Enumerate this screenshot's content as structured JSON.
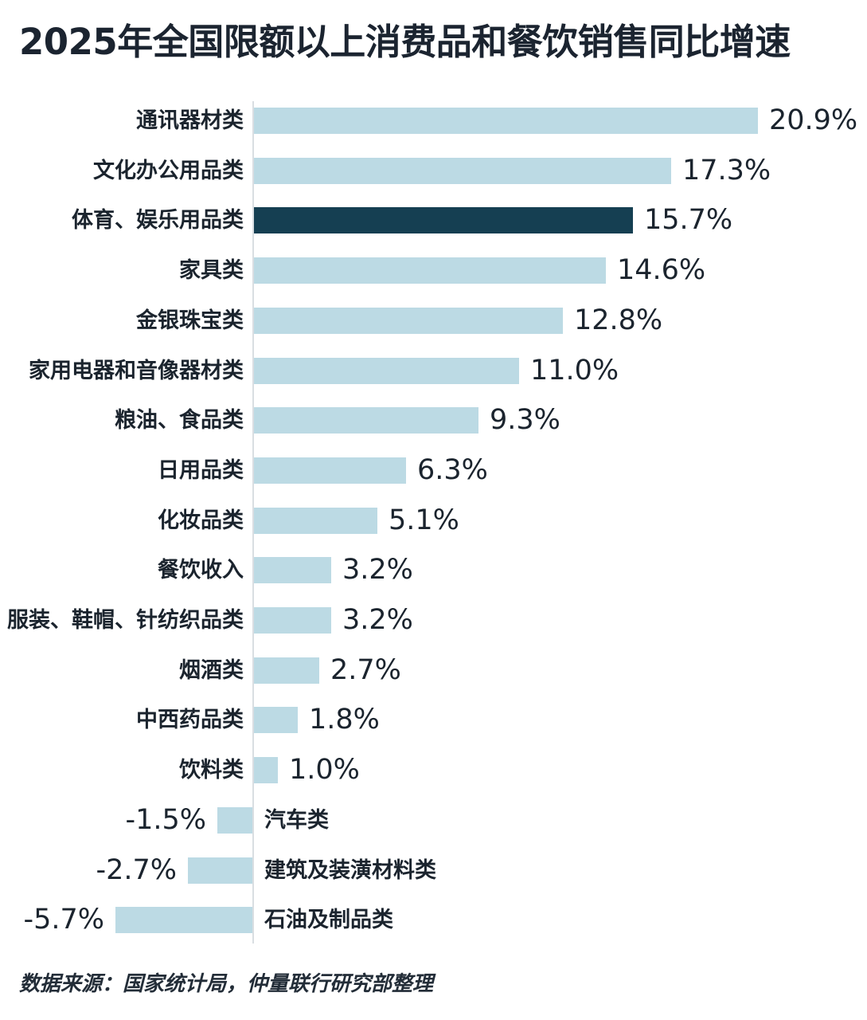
{
  "title": "2025年全国限额以上消费品和餐饮销售同比增速",
  "footer": {
    "source": "数据来源：国家统计局，仲量联行研究部整理"
  },
  "chart_data": {
    "type": "bar",
    "orientation": "horizontal",
    "title": "2025年全国限额以上消费品和餐饮销售同比增速",
    "unit": "%",
    "grid": false,
    "legend": false,
    "xlim": [
      -6.5,
      22
    ],
    "categories": [
      "通讯器材类",
      "文化办公用品类",
      "体育、娱乐用品类",
      "家具类",
      "金银珠宝类",
      "家用电器和音像器材类",
      "粮油、食品类",
      "日用品类",
      "化妆品类",
      "餐饮收入",
      "服装、鞋帽、针纺织品类",
      "烟酒类",
      "中西药品类",
      "饮料类",
      "汽车类",
      "建筑及装潢材料类",
      "石油及制品类"
    ],
    "values": [
      20.9,
      17.3,
      15.7,
      14.6,
      12.8,
      11.0,
      9.3,
      6.3,
      5.1,
      3.2,
      3.2,
      2.7,
      1.8,
      1.0,
      -1.5,
      -2.7,
      -5.7
    ],
    "value_labels": [
      "20.9%",
      "17.3%",
      "15.7%",
      "14.6%",
      "12.8%",
      "11.0%",
      "9.3%",
      "6.3%",
      "5.1%",
      "3.2%",
      "3.2%",
      "2.7%",
      "1.8%",
      "1.0%",
      "-1.5%",
      "-2.7%",
      "-5.7%"
    ],
    "highlight_index": 2,
    "colors": {
      "bar": "#bcdae4",
      "highlight": "#153f52",
      "axis": "#d9dee2",
      "text": "#1b242e"
    },
    "source_note": "数据来源：国家统计局，仲量联行研究部整理"
  }
}
